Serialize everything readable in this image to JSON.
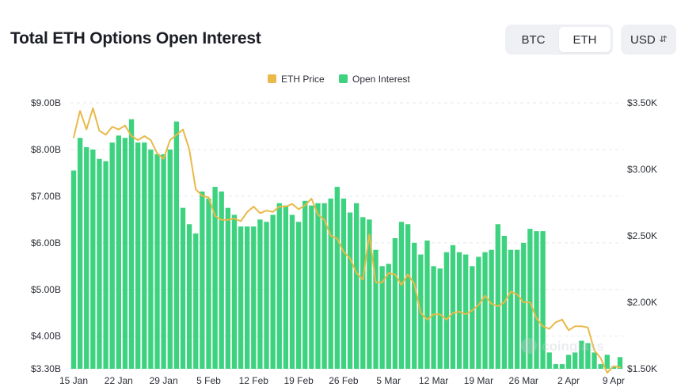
{
  "header": {
    "title": "Total ETH Options Open Interest",
    "coin_tabs": [
      "BTC",
      "ETH"
    ],
    "active_coin": "ETH",
    "currency": "USD",
    "currency_icon": "chevron-updown-icon"
  },
  "watermark": "coinglass",
  "colors": {
    "price_line": "#e9b949",
    "bars": "#3dd27f",
    "axis_text": "#2c2f36"
  },
  "chart_data": {
    "type": "bar+line",
    "legend": [
      "ETH Price",
      "Open Interest"
    ],
    "legend_position": "top-center",
    "x_ticks": [
      "15 Jan",
      "22 Jan",
      "29 Jan",
      "5 Feb",
      "12 Feb",
      "19 Feb",
      "26 Feb",
      "5 Mar",
      "12 Mar",
      "19 Mar",
      "26 Mar",
      "2 Apr",
      "9 Apr"
    ],
    "left_axis": {
      "ticks": [
        "$3.30B",
        "$4.00B",
        "$5.00B",
        "$6.00B",
        "$7.00B",
        "$8.00B",
        "$9.00B"
      ],
      "tick_values": [
        3.3,
        4.0,
        5.0,
        6.0,
        7.0,
        8.0,
        9.0
      ],
      "range": [
        3.3,
        9.0
      ],
      "unit": "USD billions"
    },
    "right_axis": {
      "ticks": [
        "$1.50K",
        "$2.00K",
        "$2.50K",
        "$3.00K",
        "$3.50K"
      ],
      "tick_values": [
        1.5,
        2.0,
        2.5,
        3.0,
        3.5
      ],
      "range": [
        1.5,
        3.5
      ],
      "unit": "USD thousands"
    },
    "dates": [
      "2025-01-15",
      "2025-01-16",
      "2025-01-17",
      "2025-01-18",
      "2025-01-19",
      "2025-01-20",
      "2025-01-21",
      "2025-01-22",
      "2025-01-23",
      "2025-01-24",
      "2025-01-25",
      "2025-01-26",
      "2025-01-27",
      "2025-01-28",
      "2025-01-29",
      "2025-01-30",
      "2025-01-31",
      "2025-02-01",
      "2025-02-02",
      "2025-02-03",
      "2025-02-04",
      "2025-02-05",
      "2025-02-06",
      "2025-02-07",
      "2025-02-08",
      "2025-02-09",
      "2025-02-10",
      "2025-02-11",
      "2025-02-12",
      "2025-02-13",
      "2025-02-14",
      "2025-02-15",
      "2025-02-16",
      "2025-02-17",
      "2025-02-18",
      "2025-02-19",
      "2025-02-20",
      "2025-02-21",
      "2025-02-22",
      "2025-02-23",
      "2025-02-24",
      "2025-02-25",
      "2025-02-26",
      "2025-02-27",
      "2025-02-28",
      "2025-03-01",
      "2025-03-02",
      "2025-03-03",
      "2025-03-04",
      "2025-03-05",
      "2025-03-06",
      "2025-03-07",
      "2025-03-08",
      "2025-03-09",
      "2025-03-10",
      "2025-03-11",
      "2025-03-12",
      "2025-03-13",
      "2025-03-14",
      "2025-03-15",
      "2025-03-16",
      "2025-03-17",
      "2025-03-18",
      "2025-03-19",
      "2025-03-20",
      "2025-03-21",
      "2025-03-22",
      "2025-03-23",
      "2025-03-24",
      "2025-03-25",
      "2025-03-26",
      "2025-03-27",
      "2025-03-28",
      "2025-03-29",
      "2025-03-30",
      "2025-03-31",
      "2025-04-01",
      "2025-04-02",
      "2025-04-03",
      "2025-04-04",
      "2025-04-05",
      "2025-04-06",
      "2025-04-07",
      "2025-04-08",
      "2025-04-09",
      "2025-04-10"
    ],
    "series": [
      {
        "name": "Open Interest",
        "type": "bar",
        "axis": "left",
        "values": [
          7.55,
          8.25,
          8.05,
          8.0,
          7.8,
          7.75,
          8.15,
          8.3,
          8.25,
          8.65,
          8.15,
          8.15,
          8.0,
          7.9,
          7.9,
          8.0,
          8.6,
          6.75,
          6.4,
          6.2,
          7.1,
          6.95,
          7.2,
          7.1,
          6.75,
          6.6,
          6.35,
          6.35,
          6.35,
          6.5,
          6.45,
          6.6,
          6.85,
          6.8,
          6.6,
          6.45,
          6.9,
          6.8,
          6.85,
          6.85,
          6.95,
          7.2,
          6.95,
          6.65,
          6.85,
          6.55,
          6.5,
          5.85,
          5.5,
          5.55,
          6.1,
          6.45,
          6.4,
          6.0,
          5.75,
          6.05,
          5.5,
          5.45,
          5.8,
          5.95,
          5.8,
          5.75,
          5.5,
          5.7,
          5.8,
          5.85,
          6.4,
          6.15,
          5.85,
          5.85,
          6.0,
          6.3,
          6.25,
          6.25,
          3.65,
          3.4,
          3.4,
          3.6,
          3.65,
          3.9,
          3.85,
          3.65,
          3.4,
          3.6,
          3.35,
          3.55
        ]
      },
      {
        "name": "ETH Price",
        "type": "line",
        "axis": "right",
        "values": [
          3.24,
          3.44,
          3.3,
          3.46,
          3.29,
          3.26,
          3.32,
          3.3,
          3.33,
          3.25,
          3.22,
          3.25,
          3.22,
          3.12,
          3.08,
          3.22,
          3.26,
          3.3,
          3.15,
          2.85,
          2.8,
          2.79,
          2.65,
          2.62,
          2.62,
          2.63,
          2.61,
          2.68,
          2.72,
          2.67,
          2.69,
          2.68,
          2.72,
          2.72,
          2.74,
          2.7,
          2.73,
          2.78,
          2.66,
          2.62,
          2.5,
          2.48,
          2.38,
          2.33,
          2.22,
          2.17,
          2.51,
          2.15,
          2.15,
          2.22,
          2.21,
          2.13,
          2.21,
          2.14,
          1.92,
          1.87,
          1.91,
          1.91,
          1.87,
          1.92,
          1.93,
          1.91,
          1.94,
          1.98,
          2.05,
          1.99,
          1.97,
          2.0,
          2.08,
          2.06,
          2.0,
          2.0,
          1.88,
          1.82,
          1.8,
          1.85,
          1.87,
          1.79,
          1.82,
          1.82,
          1.81,
          1.64,
          1.58,
          1.47,
          1.52,
          1.51
        ]
      }
    ],
    "grid": {
      "horizontal": true,
      "style": "dashed"
    }
  }
}
